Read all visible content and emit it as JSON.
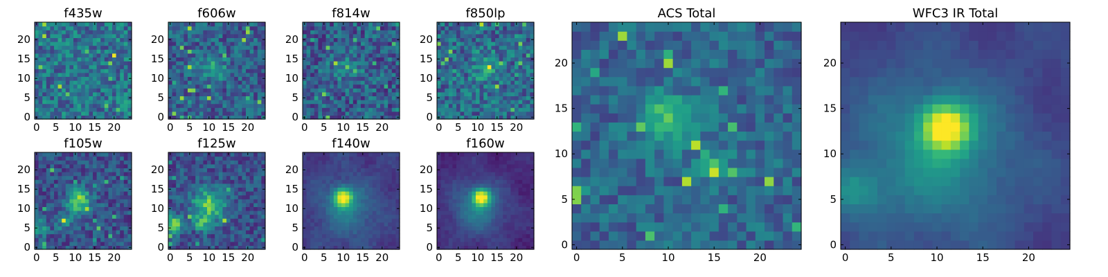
{
  "figure": {
    "description": "Grid of 10 heatmap cutouts (viridis colormap), 25x25 pixels each",
    "colormap": "viridis"
  },
  "chart_data": [
    {
      "type": "heatmap",
      "title": "f435w",
      "xlim": [
        0,
        24
      ],
      "ylim": [
        0,
        24
      ],
      "xticks": [
        0,
        5,
        10,
        15,
        20
      ],
      "yticks": [
        0,
        5,
        10,
        15,
        20
      ],
      "grid": false,
      "mode": "noise",
      "base": 0.38,
      "spread": 0.2,
      "blobs": []
    },
    {
      "type": "heatmap",
      "title": "f606w",
      "xlim": [
        0,
        24
      ],
      "ylim": [
        0,
        24
      ],
      "xticks": [
        0,
        5,
        10,
        15,
        20
      ],
      "yticks": [
        0,
        5,
        10,
        15,
        20
      ],
      "grid": false,
      "mode": "noise",
      "base": 0.3,
      "spread": 0.18,
      "blobs": [
        {
          "x": 11,
          "y": 13,
          "amp": 0.25,
          "sigma": 2.5
        }
      ]
    },
    {
      "type": "heatmap",
      "title": "f814w",
      "xlim": [
        0,
        24
      ],
      "ylim": [
        0,
        24
      ],
      "xticks": [
        0,
        5,
        10,
        15,
        20
      ],
      "yticks": [
        0,
        5,
        10,
        15,
        20
      ],
      "grid": false,
      "mode": "noise",
      "base": 0.3,
      "spread": 0.2,
      "blobs": [
        {
          "x": 11,
          "y": 13,
          "amp": 0.2,
          "sigma": 2.5
        }
      ]
    },
    {
      "type": "heatmap",
      "title": "f850lp",
      "xlim": [
        0,
        24
      ],
      "ylim": [
        0,
        24
      ],
      "xticks": [
        0,
        5,
        10,
        15,
        20
      ],
      "yticks": [
        0,
        5,
        10,
        15,
        20
      ],
      "grid": false,
      "mode": "noise",
      "base": 0.35,
      "spread": 0.2,
      "blobs": [
        {
          "x": 12,
          "y": 13,
          "amp": 0.2,
          "sigma": 2.5
        }
      ]
    },
    {
      "type": "heatmap",
      "title": "f105w",
      "xlim": [
        0,
        24
      ],
      "ylim": [
        0,
        24
      ],
      "xticks": [
        0,
        5,
        10,
        15,
        20
      ],
      "yticks": [
        0,
        5,
        10,
        15,
        20
      ],
      "grid": false,
      "mode": "noise",
      "base": 0.25,
      "spread": 0.15,
      "blobs": [
        {
          "x": 11,
          "y": 12,
          "amp": 0.55,
          "sigma": 2.2
        },
        {
          "x": 1,
          "y": 5,
          "amp": 0.3,
          "sigma": 1.5
        },
        {
          "x": 7,
          "y": 7,
          "amp": 0.3,
          "sigma": 1.5
        }
      ]
    },
    {
      "type": "heatmap",
      "title": "f125w",
      "xlim": [
        0,
        24
      ],
      "ylim": [
        0,
        24
      ],
      "xticks": [
        0,
        5,
        10,
        15,
        20
      ],
      "yticks": [
        0,
        5,
        10,
        15,
        20
      ],
      "grid": false,
      "mode": "noise",
      "base": 0.25,
      "spread": 0.15,
      "blobs": [
        {
          "x": 10,
          "y": 11,
          "amp": 0.5,
          "sigma": 3
        },
        {
          "x": 1,
          "y": 6,
          "amp": 0.55,
          "sigma": 1.6
        },
        {
          "x": 8,
          "y": 6,
          "amp": 0.35,
          "sigma": 1.3
        }
      ]
    },
    {
      "type": "heatmap",
      "title": "f140w",
      "xlim": [
        0,
        24
      ],
      "ylim": [
        0,
        24
      ],
      "xticks": [
        0,
        5,
        10,
        15,
        20
      ],
      "yticks": [
        0,
        5,
        10,
        15,
        20
      ],
      "grid": false,
      "mode": "smooth",
      "base": 0.18,
      "spread": 0.08,
      "blobs": [
        {
          "x": 10,
          "y": 13,
          "amp": 0.75,
          "sigma": 1.6
        },
        {
          "x": 11,
          "y": 10,
          "amp": 0.25,
          "sigma": 5
        }
      ]
    },
    {
      "type": "heatmap",
      "title": "f160w",
      "xlim": [
        0,
        24
      ],
      "ylim": [
        0,
        24
      ],
      "xticks": [
        0,
        5,
        10,
        15,
        20
      ],
      "yticks": [
        0,
        5,
        10,
        15,
        20
      ],
      "grid": false,
      "mode": "smooth",
      "base": 0.12,
      "spread": 0.07,
      "blobs": [
        {
          "x": 11,
          "y": 13,
          "amp": 0.8,
          "sigma": 1.5
        },
        {
          "x": 10,
          "y": 10,
          "amp": 0.3,
          "sigma": 5
        }
      ]
    },
    {
      "type": "heatmap",
      "title": "ACS Total",
      "xlim": [
        0,
        24
      ],
      "ylim": [
        0,
        24
      ],
      "xticks": [
        0,
        5,
        10,
        15,
        20
      ],
      "yticks": [
        0,
        5,
        10,
        15,
        20
      ],
      "grid": false,
      "mode": "noise",
      "base": 0.33,
      "spread": 0.14,
      "blobs": [
        {
          "x": 10,
          "y": 14,
          "amp": 0.35,
          "sigma": 2
        },
        {
          "x": 15,
          "y": 9,
          "amp": 0.25,
          "sigma": 1.5
        },
        {
          "x": 0,
          "y": 6,
          "amp": 0.6,
          "sigma": 0.6
        }
      ]
    },
    {
      "type": "heatmap",
      "title": "WFC3 IR Total",
      "xlim": [
        0,
        24
      ],
      "ylim": [
        0,
        24
      ],
      "xticks": [
        0,
        5,
        10,
        15,
        20
      ],
      "yticks": [
        0,
        5,
        10,
        15,
        20
      ],
      "grid": false,
      "mode": "smooth",
      "base": 0.2,
      "spread": 0.05,
      "blobs": [
        {
          "x": 11,
          "y": 13,
          "amp": 0.7,
          "sigma": 1.8
        },
        {
          "x": 10,
          "y": 10,
          "amp": 0.3,
          "sigma": 6
        },
        {
          "x": 1,
          "y": 6,
          "amp": 0.25,
          "sigma": 2
        }
      ]
    }
  ]
}
